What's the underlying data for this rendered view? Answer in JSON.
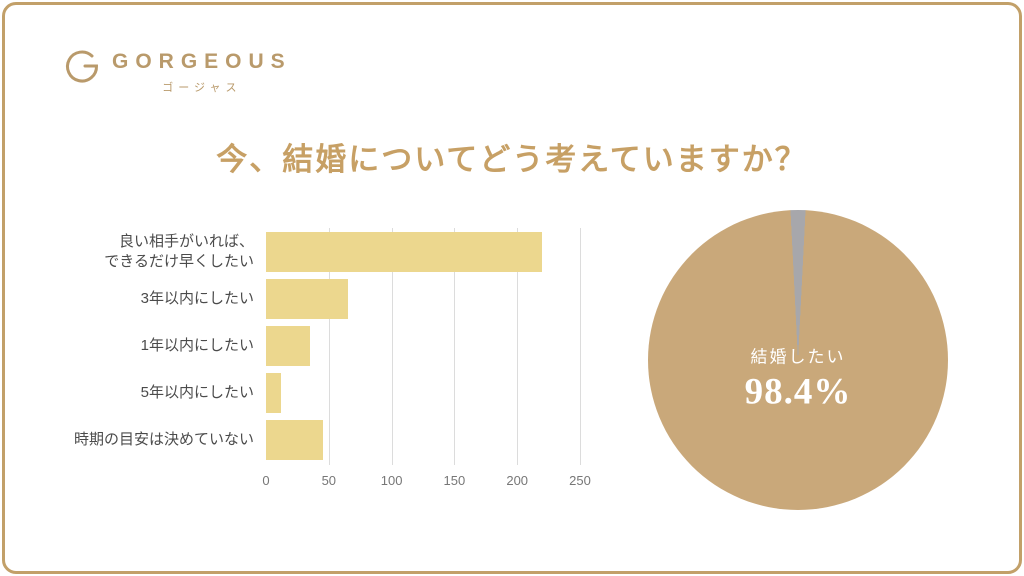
{
  "page": {
    "background": "#ffffff",
    "border_color": "#c2a069"
  },
  "logo": {
    "name": "GORGEOUS",
    "subtitle": "ゴージャス",
    "color": "#b99a6b"
  },
  "title": "今、結婚についてどう考えていますか？",
  "title_color": "#c7a065",
  "chart_data": [
    {
      "type": "bar",
      "orientation": "horizontal",
      "title": "",
      "categories": [
        "良い相手がいれば、\nできるだけ早くしたい",
        "3年以内にしたい",
        "1年以内にしたい",
        "5年以内にしたい",
        "時期の目安は決めていない"
      ],
      "values": [
        220,
        65,
        35,
        12,
        45
      ],
      "xlim": [
        0,
        250
      ],
      "x_ticks": [
        0,
        50,
        100,
        150,
        200,
        250
      ],
      "bar_color": "#ecd78e",
      "grid": "vertical-light-gray",
      "legend": "none"
    },
    {
      "type": "pie",
      "title": "",
      "slices": [
        {
          "label": "結婚したい",
          "value": 98.4,
          "color": "#c9a87a"
        },
        {
          "label": "",
          "value": 1.6,
          "color": "#a7a7ab"
        }
      ],
      "center_label": "結婚したい",
      "center_value": "98.4%",
      "legend": "none"
    }
  ]
}
